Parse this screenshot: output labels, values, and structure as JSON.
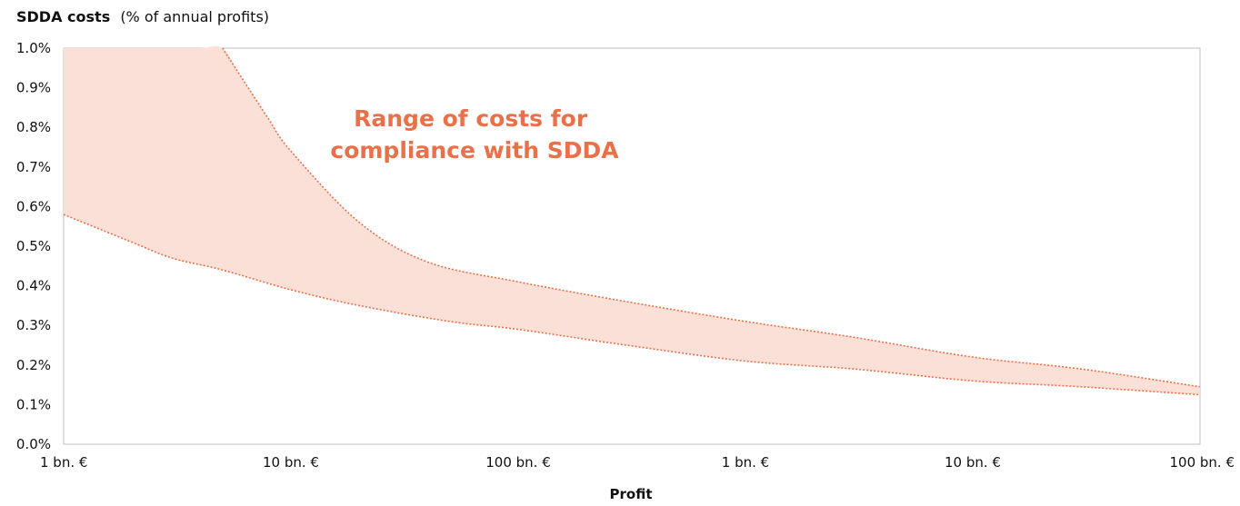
{
  "colors": {
    "accent": "#E8714A",
    "band_fill": "#FBE0D8",
    "axis": "#BFBFBF",
    "text": "#111111"
  },
  "chart_data": {
    "type": "area",
    "title": "SDDA costs",
    "subtitle": "(% of annual profits)",
    "xlabel": "Profit",
    "ylabel": "",
    "x_scale": "log",
    "x": [
      1,
      10,
      100,
      1000,
      10000,
      100000
    ],
    "x_tick_labels": [
      "1 bn. €",
      "10 bn. €",
      "100 bn. €",
      "1 bn. €",
      "10 bn. €",
      "100 bn. €"
    ],
    "y_tick_labels": [
      "0.0%",
      "0.1%",
      "0.2%",
      "0.3%",
      "0.4%",
      "0.5%",
      "0.6%",
      "0.7%",
      "0.8%",
      "0.9%",
      "1.0%"
    ],
    "ylim": [
      0,
      1.0
    ],
    "grid": false,
    "series": [
      {
        "role": "upper bound",
        "x": [
          1,
          2,
          3,
          4,
          5,
          6,
          8,
          10,
          20,
          40,
          100,
          300,
          1000,
          3000,
          10000,
          30000,
          100000
        ],
        "values": [
          1.0,
          1.0,
          1.0,
          1.0,
          1.0,
          0.93,
          0.82,
          0.74,
          0.56,
          0.46,
          0.41,
          0.36,
          0.31,
          0.27,
          0.22,
          0.19,
          0.145
        ]
      },
      {
        "role": "lower bound",
        "x": [
          1,
          2,
          3,
          5,
          10,
          20,
          50,
          100,
          300,
          1000,
          3000,
          10000,
          30000,
          100000
        ],
        "values": [
          0.58,
          0.51,
          0.47,
          0.44,
          0.39,
          0.35,
          0.31,
          0.29,
          0.25,
          0.21,
          0.19,
          0.16,
          0.145,
          0.125
        ]
      }
    ],
    "annotation": {
      "lines": [
        "Range of costs for",
        "compliance with SDDA"
      ]
    }
  }
}
